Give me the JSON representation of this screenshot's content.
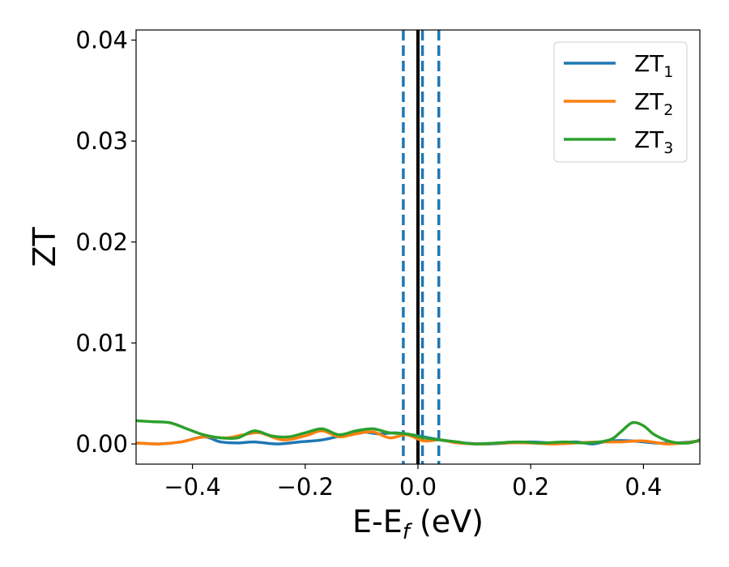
{
  "chart_data": {
    "type": "line",
    "xlabel": "E-E",
    "xlabel_sub": "f",
    "xlabel_unit": " (eV)",
    "ylabel": "ZT",
    "xlim": [
      -0.5,
      0.5
    ],
    "ylim": [
      -0.002,
      0.041
    ],
    "xticks": [
      -0.4,
      -0.2,
      0.0,
      0.2,
      0.4
    ],
    "xtick_labels": [
      "−0.4",
      "−0.2",
      "0.0",
      "0.2",
      "0.4"
    ],
    "yticks": [
      0.0,
      0.01,
      0.02,
      0.03,
      0.04
    ],
    "ytick_labels": [
      "0.00",
      "0.01",
      "0.02",
      "0.03",
      "0.04"
    ],
    "grid": false,
    "legend_position": "top-right",
    "vlines": [
      {
        "x": 0.0,
        "style": "solid",
        "color": "#000000"
      },
      {
        "x": -0.026,
        "style": "dashed",
        "color": "#1f77b4"
      },
      {
        "x": 0.008,
        "style": "dashed",
        "color": "#1f77b4"
      },
      {
        "x": 0.037,
        "style": "dashed",
        "color": "#1f77b4"
      }
    ],
    "series": [
      {
        "name": "ZT",
        "name_sub": "1",
        "color": "#1f77b4",
        "x": [
          -0.5,
          -0.46,
          -0.42,
          -0.38,
          -0.35,
          -0.32,
          -0.29,
          -0.25,
          -0.21,
          -0.17,
          -0.13,
          -0.1,
          -0.07,
          -0.04,
          -0.01,
          0.02,
          0.05,
          0.08,
          0.12,
          0.16,
          0.2,
          0.24,
          0.28,
          0.31,
          0.34,
          0.38,
          0.42,
          0.46,
          0.5
        ],
        "y": [
          0.0001,
          0.0,
          0.0002,
          0.0007,
          0.0002,
          0.0001,
          0.0002,
          0.0,
          0.0002,
          0.0004,
          0.0009,
          0.0012,
          0.001,
          0.0011,
          0.0009,
          0.0006,
          0.0003,
          0.0001,
          0.0,
          0.0001,
          0.0002,
          0.0001,
          0.0002,
          0.0,
          0.0003,
          0.0003,
          0.0001,
          0.0001,
          0.0003
        ]
      },
      {
        "name": "ZT",
        "name_sub": "2",
        "color": "#ff7f0e",
        "x": [
          -0.5,
          -0.46,
          -0.42,
          -0.38,
          -0.34,
          -0.31,
          -0.28,
          -0.24,
          -0.2,
          -0.17,
          -0.14,
          -0.11,
          -0.08,
          -0.05,
          -0.02,
          0.01,
          0.04,
          0.07,
          0.11,
          0.15,
          0.2,
          0.24,
          0.28,
          0.32,
          0.36,
          0.4,
          0.44,
          0.47,
          0.5
        ],
        "y": [
          0.0001,
          0.0,
          0.0002,
          0.0007,
          0.0006,
          0.0009,
          0.0011,
          0.0004,
          0.0008,
          0.0013,
          0.0007,
          0.001,
          0.0012,
          0.0006,
          0.0009,
          0.0003,
          0.0004,
          0.0001,
          0.0,
          0.0001,
          0.0001,
          0.0,
          0.0001,
          0.0002,
          0.0002,
          0.0003,
          0.0,
          0.0001,
          0.0003
        ]
      },
      {
        "name": "ZT",
        "name_sub": "3",
        "color": "#2ca02c",
        "x": [
          -0.5,
          -0.47,
          -0.44,
          -0.41,
          -0.38,
          -0.35,
          -0.32,
          -0.29,
          -0.26,
          -0.23,
          -0.2,
          -0.17,
          -0.14,
          -0.11,
          -0.08,
          -0.05,
          -0.02,
          0.01,
          0.04,
          0.07,
          0.1,
          0.14,
          0.18,
          0.22,
          0.26,
          0.3,
          0.34,
          0.36,
          0.38,
          0.4,
          0.42,
          0.45,
          0.48,
          0.5
        ],
        "y": [
          0.0023,
          0.0022,
          0.0021,
          0.0015,
          0.0009,
          0.0006,
          0.0006,
          0.0013,
          0.0008,
          0.0007,
          0.0011,
          0.0015,
          0.0009,
          0.0013,
          0.0015,
          0.0011,
          0.001,
          0.0006,
          0.0004,
          0.0002,
          0.0,
          0.0001,
          0.0002,
          0.0001,
          0.0002,
          0.0001,
          0.0004,
          0.0012,
          0.0021,
          0.0018,
          0.0009,
          0.0002,
          0.0001,
          0.0004
        ]
      }
    ]
  }
}
